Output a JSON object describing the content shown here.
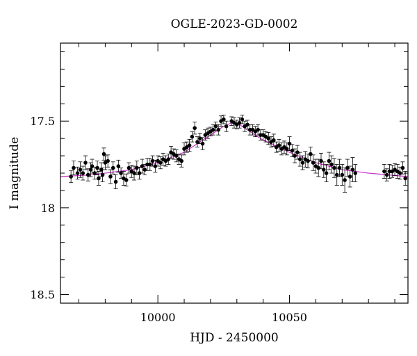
{
  "chart_data": {
    "type": "scatter",
    "title": "OGLE-2023-GD-0002",
    "xlabel": "HJD - 2450000",
    "ylabel": "I magnitude",
    "xlim": [
      9963,
      10095
    ],
    "ylim": [
      18.55,
      17.05
    ],
    "y_inverted": true,
    "x_ticks": {
      "major": [
        10000,
        10050
      ],
      "minor_step": 10,
      "labels": [
        "10000",
        "10050"
      ]
    },
    "y_ticks": {
      "major": [
        17.5,
        18,
        18.5
      ],
      "minor_step": 0.1,
      "labels": [
        "17.5",
        "18",
        "18.5"
      ]
    },
    "grid": false,
    "legend": "none",
    "colors": {
      "points": "#000000",
      "errorbars": "#000000",
      "model": "#cc33cc",
      "axes": "#000000"
    },
    "model": {
      "name": "",
      "x": [
        9963,
        9975,
        9990,
        10000,
        10010,
        10020,
        10025,
        10028,
        10031,
        10035,
        10040,
        10050,
        10060,
        10070,
        10080,
        10095
      ],
      "y": [
        17.82,
        17.81,
        17.78,
        17.74,
        17.68,
        17.58,
        17.53,
        17.51,
        17.52,
        17.56,
        17.61,
        17.68,
        17.74,
        17.78,
        17.8,
        17.82
      ]
    },
    "points": {
      "x": [
        9967,
        9968,
        9969.5,
        9970.5,
        9971.5,
        9972.5,
        9973.5,
        9974.5,
        9975,
        9976,
        9977,
        9977.5,
        9978.5,
        9979,
        9979.5,
        9980,
        9981,
        9982,
        9983,
        9984,
        9985,
        9986,
        9987,
        9988,
        9989,
        9990,
        9991,
        9992,
        9993,
        9994,
        9995,
        9996,
        9997,
        9998,
        9999,
        10000,
        10001,
        10002,
        10003,
        10004,
        10005,
        10006,
        10007,
        10008,
        10009,
        10010,
        10011,
        10012,
        10013,
        10014,
        10015,
        10016,
        10017,
        10018,
        10019,
        10020,
        10021,
        10022,
        10023,
        10024,
        10025,
        10026,
        10028,
        10029,
        10030,
        10031,
        10032,
        10033,
        10034,
        10035,
        10036,
        10037,
        10038,
        10039,
        10040,
        10041,
        10042,
        10043,
        10044,
        10045,
        10046,
        10047,
        10048,
        10049,
        10050,
        10051,
        10052,
        10053,
        10054,
        10055,
        10056,
        10057,
        10058,
        10059,
        10060,
        10061,
        10062,
        10063,
        10064,
        10065,
        10066,
        10067,
        10068,
        10069,
        10070,
        10071,
        10072,
        10073,
        10074,
        10075,
        10086,
        10087,
        10088,
        10089,
        10090,
        10091,
        10092,
        10093,
        10094
      ],
      "y": [
        17.82,
        17.77,
        17.8,
        17.78,
        17.8,
        17.74,
        17.81,
        17.78,
        17.76,
        17.8,
        17.77,
        17.83,
        17.78,
        17.81,
        17.69,
        17.74,
        17.73,
        17.82,
        17.77,
        17.85,
        17.76,
        17.8,
        17.83,
        17.84,
        17.77,
        17.79,
        17.8,
        17.77,
        17.8,
        17.76,
        17.78,
        17.75,
        17.75,
        17.73,
        17.76,
        17.73,
        17.74,
        17.72,
        17.73,
        17.72,
        17.68,
        17.69,
        17.7,
        17.72,
        17.73,
        17.66,
        17.65,
        17.64,
        17.59,
        17.54,
        17.62,
        17.6,
        17.63,
        17.58,
        17.57,
        17.56,
        17.55,
        17.53,
        17.55,
        17.5,
        17.49,
        17.53,
        17.5,
        17.51,
        17.52,
        17.51,
        17.49,
        17.53,
        17.52,
        17.55,
        17.55,
        17.56,
        17.55,
        17.58,
        17.58,
        17.59,
        17.6,
        17.62,
        17.61,
        17.65,
        17.64,
        17.66,
        17.65,
        17.66,
        17.63,
        17.67,
        17.7,
        17.68,
        17.72,
        17.74,
        17.72,
        17.73,
        17.69,
        17.74,
        17.76,
        17.77,
        17.73,
        17.78,
        17.8,
        17.73,
        17.75,
        17.77,
        17.81,
        17.77,
        17.81,
        17.84,
        17.77,
        17.82,
        17.78,
        17.8,
        17.79,
        17.81,
        17.79,
        17.79,
        17.78,
        17.79,
        17.8,
        17.77,
        17.83
      ],
      "err": [
        0.035,
        0.04,
        0.035,
        0.045,
        0.04,
        0.04,
        0.035,
        0.04,
        0.04,
        0.035,
        0.04,
        0.04,
        0.04,
        0.04,
        0.035,
        0.04,
        0.035,
        0.04,
        0.035,
        0.04,
        0.035,
        0.03,
        0.04,
        0.035,
        0.03,
        0.035,
        0.04,
        0.04,
        0.035,
        0.04,
        0.03,
        0.035,
        0.035,
        0.03,
        0.035,
        0.03,
        0.035,
        0.035,
        0.03,
        0.03,
        0.035,
        0.03,
        0.035,
        0.03,
        0.035,
        0.035,
        0.03,
        0.035,
        0.03,
        0.035,
        0.03,
        0.03,
        0.035,
        0.03,
        0.03,
        0.025,
        0.03,
        0.025,
        0.03,
        0.03,
        0.025,
        0.03,
        0.025,
        0.03,
        0.025,
        0.03,
        0.025,
        0.03,
        0.025,
        0.03,
        0.03,
        0.03,
        0.03,
        0.03,
        0.03,
        0.03,
        0.035,
        0.03,
        0.035,
        0.03,
        0.035,
        0.035,
        0.035,
        0.035,
        0.04,
        0.035,
        0.04,
        0.04,
        0.04,
        0.04,
        0.045,
        0.04,
        0.04,
        0.045,
        0.04,
        0.05,
        0.045,
        0.045,
        0.05,
        0.05,
        0.05,
        0.055,
        0.06,
        0.05,
        0.06,
        0.07,
        0.05,
        0.06,
        0.07,
        0.05,
        0.04,
        0.035,
        0.04,
        0.035,
        0.035,
        0.04,
        0.035,
        0.035,
        0.04
      ]
    }
  }
}
